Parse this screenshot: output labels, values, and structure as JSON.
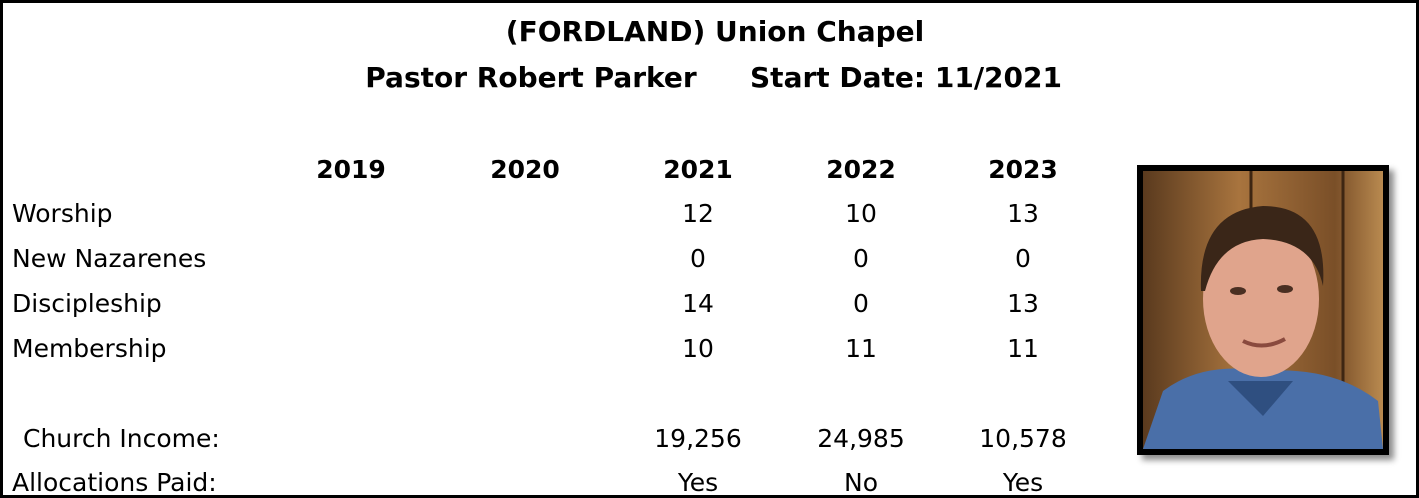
{
  "header": {
    "title": "(FORDLAND) Union Chapel",
    "pastor": "Pastor Robert Parker",
    "start_date": "Start Date: 11/2021"
  },
  "table": {
    "columns": [
      "2019",
      "2020",
      "2021",
      "2022",
      "2023"
    ],
    "rows": [
      {
        "label": "Worship",
        "cells": [
          null,
          null,
          "12",
          "10",
          "13"
        ]
      },
      {
        "label": "New Nazarenes",
        "cells": [
          null,
          null,
          "0",
          "0",
          "0"
        ]
      },
      {
        "label": "Discipleship",
        "cells": [
          null,
          null,
          "14",
          "0",
          "13"
        ]
      },
      {
        "label": "Membership",
        "cells": [
          null,
          null,
          "10",
          "11",
          "11"
        ]
      },
      {
        "label": "Church Income:",
        "cells": [
          null,
          null,
          "19,256",
          "24,985",
          "10,578"
        ]
      },
      {
        "label": "Allocations Paid:",
        "cells": [
          null,
          null,
          "Yes",
          "No",
          "Yes"
        ]
      }
    ]
  }
}
